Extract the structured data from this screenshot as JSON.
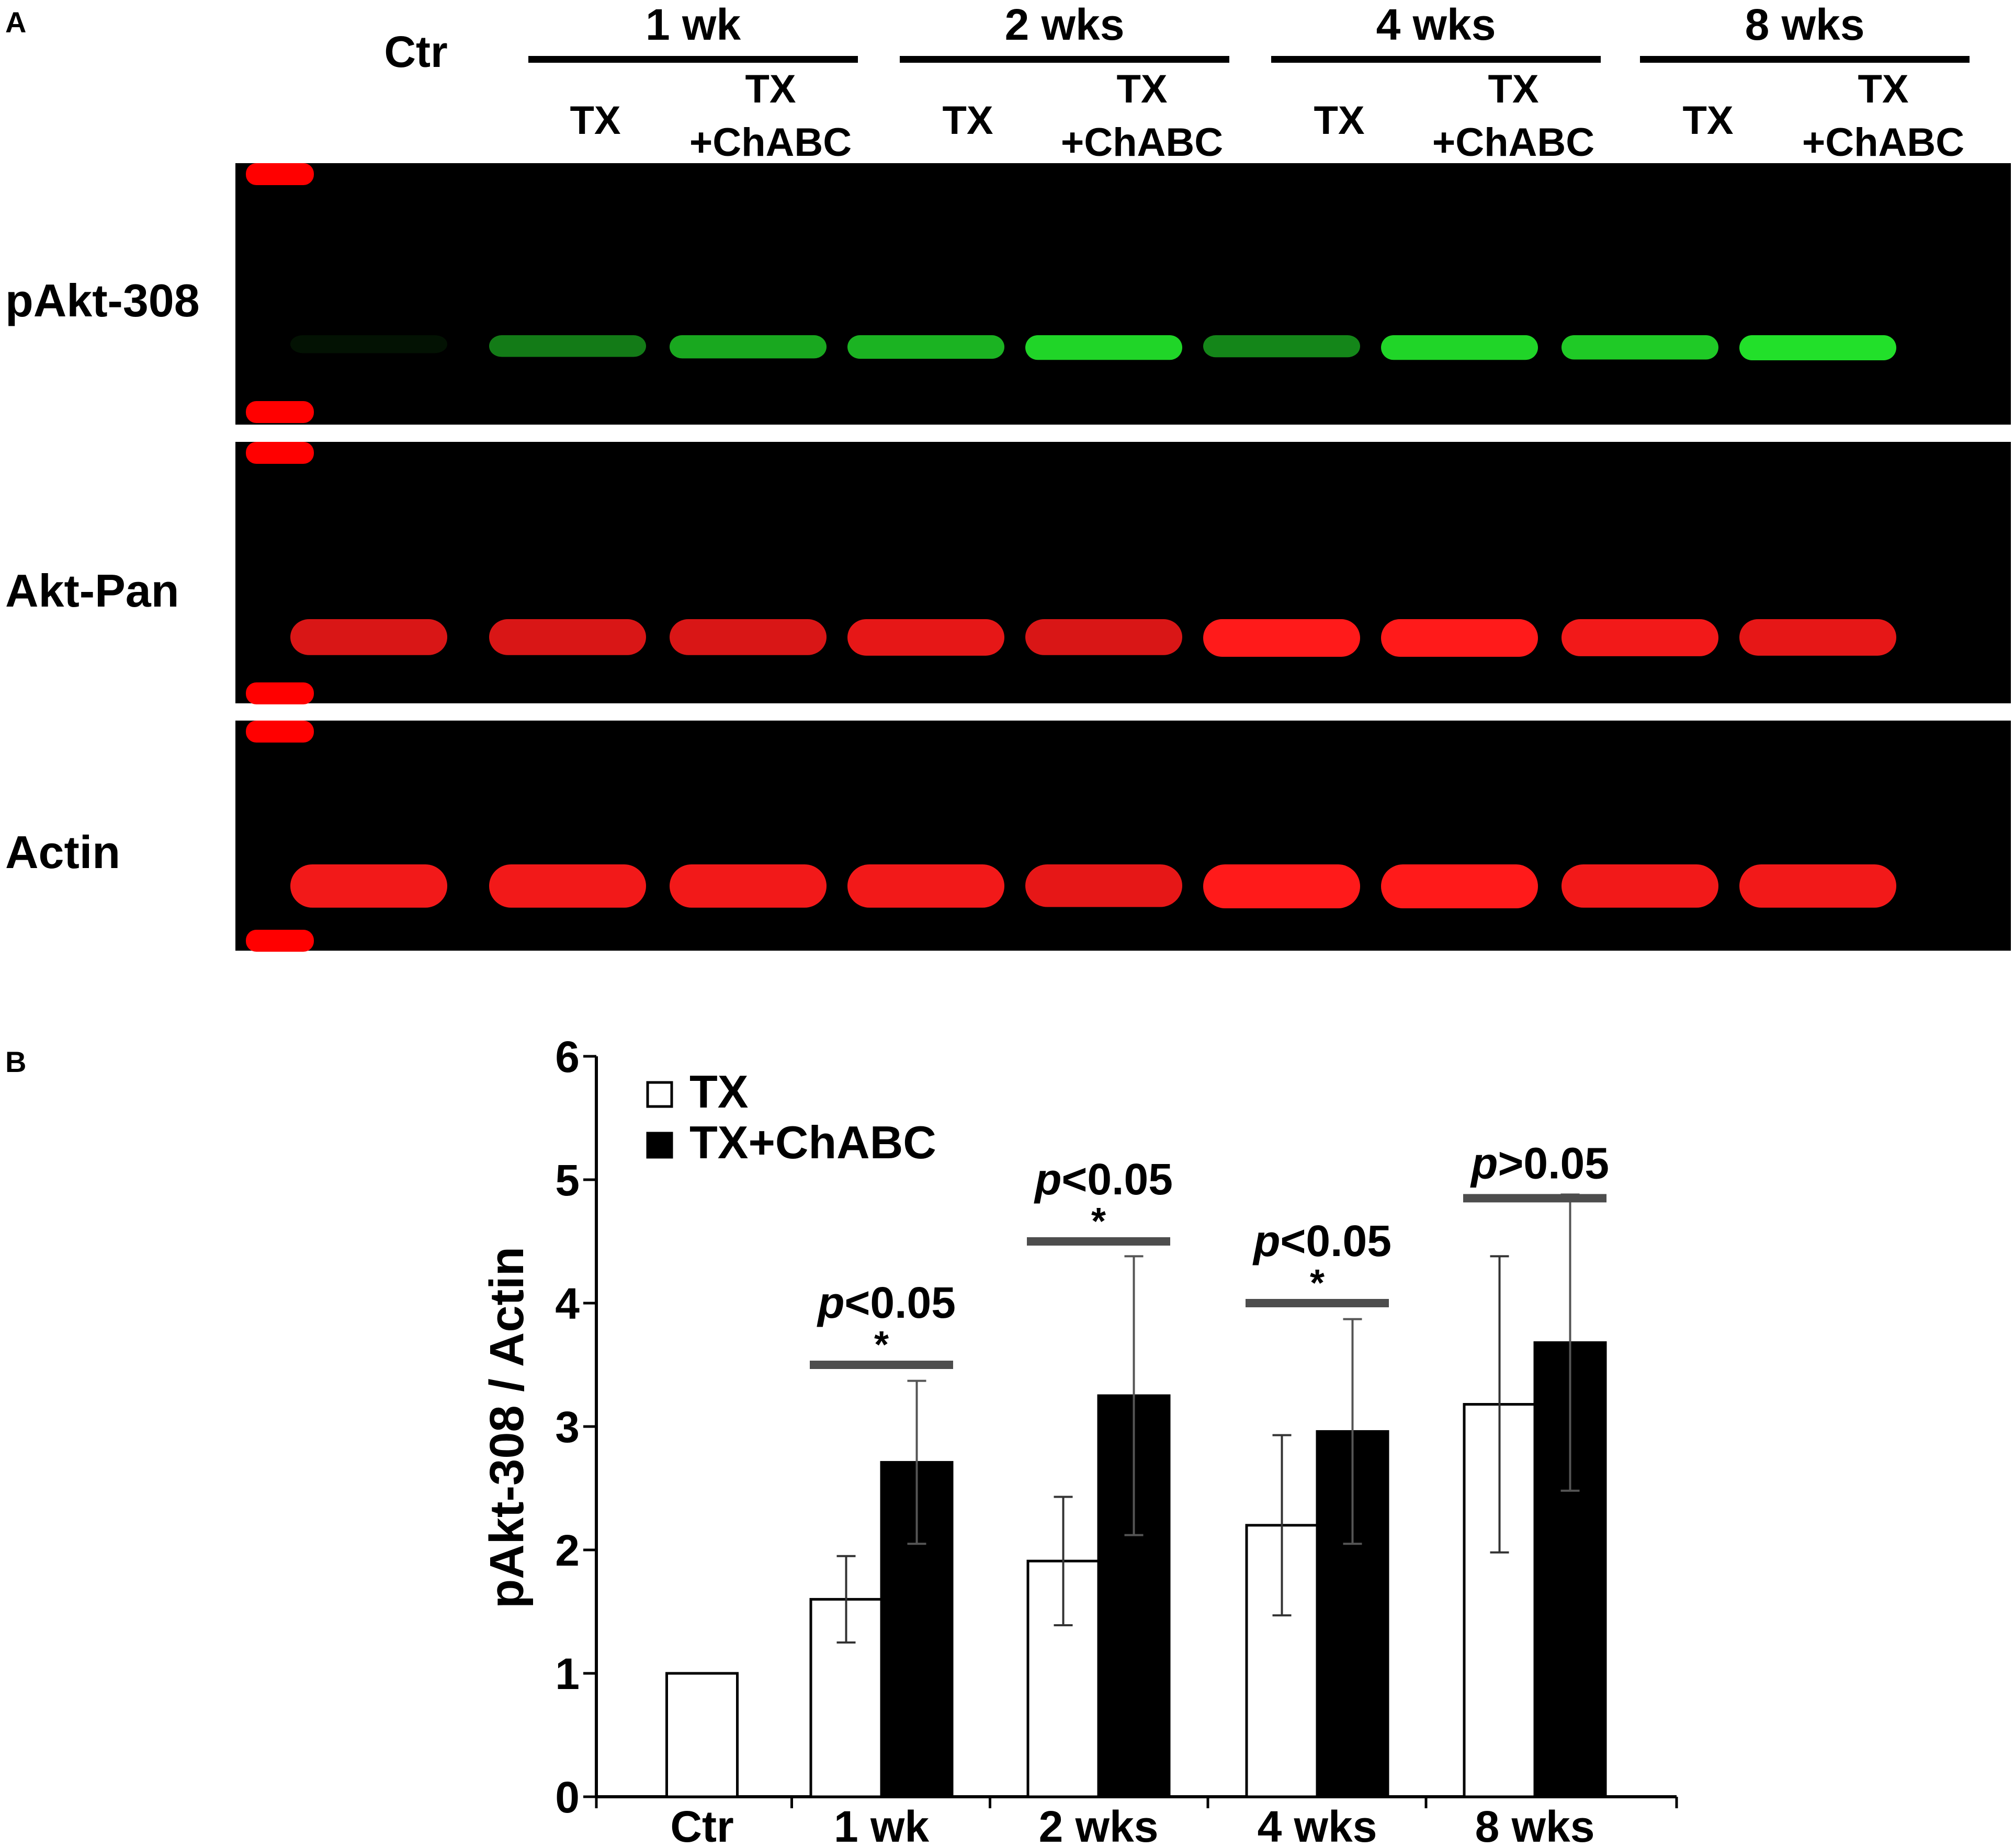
{
  "panel_a": {
    "panel_label": "A",
    "ctr_label": "Ctr",
    "time_groups": [
      "1 wk",
      "2 wks",
      "4 wks",
      "8 wks"
    ],
    "treatments": [
      {
        "line1": "TX",
        "line2": ""
      },
      {
        "line1": "TX",
        "line2": "+ChABC"
      }
    ],
    "blots": [
      {
        "label": "pAkt-308",
        "band_color": "#22e02a",
        "band_strengths": [
          0.05,
          0.55,
          0.75,
          0.8,
          0.95,
          0.6,
          0.95,
          0.9,
          1.0
        ]
      },
      {
        "label": "Akt-Pan",
        "band_color": "#ff1a1a",
        "band_strengths": [
          0.85,
          0.85,
          0.85,
          0.9,
          0.85,
          1.0,
          1.0,
          0.95,
          0.9
        ]
      },
      {
        "label": "Actin",
        "band_color": "#ff1a1a",
        "band_strengths": [
          0.95,
          0.95,
          0.95,
          0.95,
          0.9,
          1.0,
          1.0,
          0.95,
          0.95
        ]
      }
    ],
    "marker_color": "#ff0000"
  },
  "chart_data": {
    "panel_label": "B",
    "type": "bar",
    "ylabel": "pAkt-308 / Actin",
    "xlabel": "",
    "ylim": [
      0,
      6
    ],
    "yticks": [
      0,
      1,
      2,
      3,
      4,
      5,
      6
    ],
    "categories": [
      "Ctr",
      "1 wk",
      "2 wks",
      "4 wks",
      "8 wks"
    ],
    "series": [
      {
        "name": "TX",
        "fill": "#ffffff",
        "values": [
          1.0,
          1.6,
          1.91,
          2.2,
          3.18
        ],
        "error": [
          0,
          0.35,
          0.52,
          0.73,
          1.2
        ]
      },
      {
        "name": "TX+ChABC",
        "fill": "#000000",
        "values": [
          null,
          2.71,
          3.25,
          2.96,
          3.68
        ],
        "error": [
          null,
          0.66,
          1.13,
          0.91,
          1.2
        ]
      }
    ],
    "legend_position": "top-left",
    "annotations": [
      {
        "group": "1 wk",
        "text": "p<0.05",
        "star": "*",
        "level": 3.5
      },
      {
        "group": "2 wks",
        "text": "p<0.05",
        "star": "*",
        "level": 4.5
      },
      {
        "group": "4 wks",
        "text": "p<0.05",
        "star": "*",
        "level": 4.0
      },
      {
        "group": "8 wks",
        "text": "p>0.05",
        "star": "",
        "level": 4.85
      }
    ]
  }
}
